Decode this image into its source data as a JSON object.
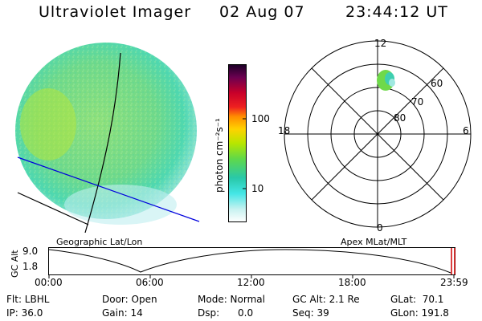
{
  "header": {
    "instrument": "Ultraviolet Imager",
    "date": "02 Aug 07",
    "time": "23:44:12 UT"
  },
  "colorbar": {
    "label": "photon cm⁻²s⁻¹",
    "ticks": [
      "100",
      "10"
    ]
  },
  "polar_plot": {
    "mlt_labels": {
      "top": "12",
      "left": "18",
      "right": "6",
      "bottom": "0"
    },
    "lat_labels": [
      "60",
      "70",
      "80"
    ]
  },
  "altitude_panel": {
    "left_title": "Geographic Lat/Lon",
    "right_title": "Apex MLat/MLT",
    "y_axis_label": "GC Alt",
    "y_ticks": [
      "9.0",
      "1.8"
    ],
    "x_ticks": [
      "00:00",
      "06:00",
      "12:00",
      "18:00",
      "23:59"
    ]
  },
  "metadata": {
    "flt": "Flt: LBHL",
    "ip": "IP: 36.0",
    "door": "Door: Open",
    "gain": "Gain: 14",
    "mode": "Mode: Normal",
    "dsp": "Dsp:      0.0",
    "gc_alt": "GC Alt: 2.1 Re",
    "seq": "Seq: 39",
    "glat": "GLat:  70.1",
    "glon": "GLon: 191.8"
  }
}
